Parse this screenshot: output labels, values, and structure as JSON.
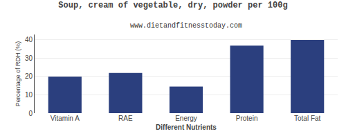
{
  "chart_data": {
    "type": "bar",
    "title": "Soup, cream of vegetable, dry, powder per 100g",
    "subtitle": "www.dietandfitnesstoday.com",
    "categories": [
      "Vitamin A",
      "RAE",
      "Energy",
      "Protein",
      "Total Fat"
    ],
    "values": [
      20,
      22,
      14.5,
      37,
      40
    ],
    "color": "#2b3f7e",
    "xlabel": "Different Nutrients",
    "ylabel": "Percentage of RDH (%)",
    "ylim": [
      0,
      43
    ],
    "yticks": [
      0,
      10,
      20,
      30,
      40
    ],
    "grid": true
  }
}
